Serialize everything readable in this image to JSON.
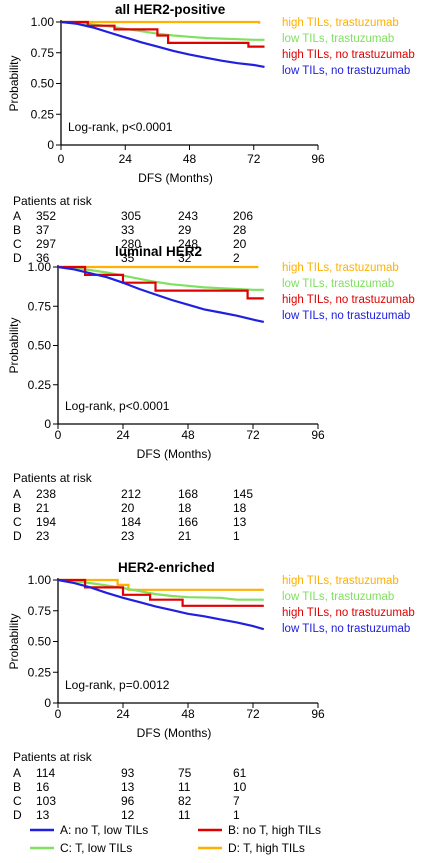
{
  "chart_data": [
    {
      "type": "line",
      "title": "all HER2-positive",
      "xlabel": "DFS (Months)",
      "ylabel": "Probability",
      "xlim": [
        0,
        96
      ],
      "ylim": [
        0,
        1
      ],
      "x_ticks": [
        "0",
        "24",
        "48",
        "72",
        "96"
      ],
      "y_ticks": [
        "0",
        "0.25",
        "0.50",
        "0.75",
        "1.00"
      ],
      "annotation": "Log-rank, p<0.0001",
      "series": [
        {
          "name": "high TILs, trastuzumab",
          "color": "#FFB000",
          "points": [
            [
              0,
              1.0
            ],
            [
              74,
              1.0
            ],
            [
              74,
              0.985
            ]
          ]
        },
        {
          "name": "low TILs, trastuzumab",
          "color": "#80E060",
          "points": [
            [
              0,
              1.0
            ],
            [
              6,
              0.995
            ],
            [
              12,
              0.98
            ],
            [
              18,
              0.965
            ],
            [
              24,
              0.945
            ],
            [
              30,
              0.925
            ],
            [
              36,
              0.905
            ],
            [
              42,
              0.89
            ],
            [
              48,
              0.88
            ],
            [
              54,
              0.87
            ],
            [
              60,
              0.865
            ],
            [
              66,
              0.86
            ],
            [
              72,
              0.855
            ],
            [
              76,
              0.855
            ]
          ]
        },
        {
          "name": "high TILs, no trastuzumab",
          "color": "#E00000",
          "points": [
            [
              0,
              1.0
            ],
            [
              10,
              1.0
            ],
            [
              10,
              0.97
            ],
            [
              20,
              0.97
            ],
            [
              20,
              0.94
            ],
            [
              36,
              0.94
            ],
            [
              36,
              0.89
            ],
            [
              40,
              0.89
            ],
            [
              40,
              0.83
            ],
            [
              70,
              0.83
            ],
            [
              70,
              0.8
            ],
            [
              76,
              0.8
            ]
          ]
        },
        {
          "name": "low TILs, no trastuzumab",
          "color": "#2020E0",
          "points": [
            [
              0,
              1.0
            ],
            [
              6,
              0.985
            ],
            [
              12,
              0.955
            ],
            [
              18,
              0.915
            ],
            [
              24,
              0.875
            ],
            [
              30,
              0.835
            ],
            [
              36,
              0.8
            ],
            [
              42,
              0.765
            ],
            [
              48,
              0.735
            ],
            [
              54,
              0.71
            ],
            [
              60,
              0.685
            ],
            [
              66,
              0.665
            ],
            [
              72,
              0.65
            ],
            [
              76,
              0.635
            ]
          ]
        }
      ],
      "risk_table": {
        "header": "Patients at risk",
        "rows": [
          {
            "label": "A",
            "values": [
              "352",
              "305",
              "243",
              "206"
            ]
          },
          {
            "label": "B",
            "values": [
              "37",
              "33",
              "29",
              "28"
            ]
          },
          {
            "label": "C",
            "values": [
              "297",
              "280",
              "248",
              "20"
            ]
          },
          {
            "label": "D",
            "values": [
              "36",
              "35",
              "32",
              "2"
            ]
          }
        ]
      }
    },
    {
      "type": "line",
      "title": "luminal HER2",
      "xlabel": "DFS (Months)",
      "ylabel": "Probability",
      "xlim": [
        0,
        96
      ],
      "ylim": [
        0,
        1
      ],
      "x_ticks": [
        "0",
        "24",
        "48",
        "72",
        "96"
      ],
      "y_ticks": [
        "0",
        "0.25",
        "0.50",
        "0.75",
        "1.00"
      ],
      "annotation": "Log-rank, p<0.0001",
      "series": [
        {
          "name": "high TILs, trastuzumab",
          "color": "#FFB000",
          "points": [
            [
              0,
              1.0
            ],
            [
              74,
              1.0
            ]
          ]
        },
        {
          "name": "low TILs, trastuzumab",
          "color": "#80E060",
          "points": [
            [
              0,
              1.0
            ],
            [
              6,
              0.995
            ],
            [
              12,
              0.98
            ],
            [
              18,
              0.965
            ],
            [
              24,
              0.945
            ],
            [
              30,
              0.925
            ],
            [
              36,
              0.905
            ],
            [
              42,
              0.89
            ],
            [
              48,
              0.88
            ],
            [
              54,
              0.87
            ],
            [
              60,
              0.865
            ],
            [
              66,
              0.86
            ],
            [
              72,
              0.855
            ],
            [
              76,
              0.855
            ]
          ]
        },
        {
          "name": "high TILs, no trastuzumab",
          "color": "#E00000",
          "points": [
            [
              0,
              1.0
            ],
            [
              10,
              1.0
            ],
            [
              10,
              0.95
            ],
            [
              24,
              0.95
            ],
            [
              24,
              0.9
            ],
            [
              36,
              0.9
            ],
            [
              36,
              0.85
            ],
            [
              70,
              0.85
            ],
            [
              70,
              0.8
            ],
            [
              76,
              0.8
            ]
          ]
        },
        {
          "name": "low TILs, no trastuzumab",
          "color": "#2020E0",
          "points": [
            [
              0,
              1.0
            ],
            [
              6,
              0.985
            ],
            [
              12,
              0.96
            ],
            [
              18,
              0.935
            ],
            [
              24,
              0.9
            ],
            [
              30,
              0.86
            ],
            [
              36,
              0.825
            ],
            [
              42,
              0.79
            ],
            [
              48,
              0.76
            ],
            [
              54,
              0.73
            ],
            [
              60,
              0.71
            ],
            [
              66,
              0.69
            ],
            [
              72,
              0.665
            ],
            [
              76,
              0.65
            ]
          ]
        }
      ],
      "risk_table": {
        "header": "Patients at risk",
        "rows": [
          {
            "label": "A",
            "values": [
              "238",
              "212",
              "168",
              "145"
            ]
          },
          {
            "label": "B",
            "values": [
              "21",
              "20",
              "18",
              "18"
            ]
          },
          {
            "label": "C",
            "values": [
              "194",
              "184",
              "166",
              "13"
            ]
          },
          {
            "label": "D",
            "values": [
              "23",
              "23",
              "21",
              "1"
            ]
          }
        ]
      }
    },
    {
      "type": "line",
      "title": "HER2-enriched",
      "xlabel": "DFS (Months)",
      "ylabel": "Probability",
      "xlim": [
        0,
        96
      ],
      "ylim": [
        0,
        1
      ],
      "x_ticks": [
        "0",
        "24",
        "48",
        "72",
        "96"
      ],
      "y_ticks": [
        "0",
        "0.25",
        "0.50",
        "0.75",
        "1.00"
      ],
      "annotation": "Log-rank, p=0.0012",
      "series": [
        {
          "name": "high TILs, trastuzumab",
          "color": "#FFB000",
          "points": [
            [
              0,
              1.0
            ],
            [
              22,
              1.0
            ],
            [
              22,
              0.96
            ],
            [
              26,
              0.96
            ],
            [
              26,
              0.92
            ],
            [
              76,
              0.92
            ]
          ]
        },
        {
          "name": "low TILs, trastuzumab",
          "color": "#80E060",
          "points": [
            [
              0,
              1.0
            ],
            [
              6,
              0.99
            ],
            [
              12,
              0.975
            ],
            [
              18,
              0.955
            ],
            [
              24,
              0.935
            ],
            [
              30,
              0.91
            ],
            [
              36,
              0.885
            ],
            [
              42,
              0.87
            ],
            [
              48,
              0.86
            ],
            [
              60,
              0.855
            ],
            [
              66,
              0.84
            ],
            [
              72,
              0.84
            ],
            [
              76,
              0.84
            ]
          ]
        },
        {
          "name": "high TILs, no trastuzumab",
          "color": "#E00000",
          "points": [
            [
              0,
              1.0
            ],
            [
              10,
              1.0
            ],
            [
              10,
              0.94
            ],
            [
              24,
              0.94
            ],
            [
              24,
              0.88
            ],
            [
              34,
              0.88
            ],
            [
              34,
              0.84
            ],
            [
              46,
              0.84
            ],
            [
              46,
              0.79
            ],
            [
              76,
              0.79
            ]
          ]
        },
        {
          "name": "low TILs, no trastuzumab",
          "color": "#2020E0",
          "points": [
            [
              0,
              1.0
            ],
            [
              6,
              0.975
            ],
            [
              12,
              0.94
            ],
            [
              18,
              0.895
            ],
            [
              24,
              0.855
            ],
            [
              30,
              0.82
            ],
            [
              36,
              0.785
            ],
            [
              42,
              0.755
            ],
            [
              48,
              0.725
            ],
            [
              54,
              0.705
            ],
            [
              60,
              0.68
            ],
            [
              66,
              0.655
            ],
            [
              72,
              0.625
            ],
            [
              76,
              0.6
            ]
          ]
        }
      ],
      "risk_table": {
        "header": "Patients at risk",
        "rows": [
          {
            "label": "A",
            "values": [
              "114",
              "93",
              "75",
              "61"
            ]
          },
          {
            "label": "B",
            "values": [
              "16",
              "13",
              "11",
              "10"
            ]
          },
          {
            "label": "C",
            "values": [
              "103",
              "96",
              "82",
              "7"
            ]
          },
          {
            "label": "D",
            "values": [
              "13",
              "12",
              "11",
              "1"
            ]
          }
        ]
      }
    }
  ],
  "bottom_legend": [
    {
      "label": "A: no T, low TILs",
      "color": "#2020E0"
    },
    {
      "label": "B: no T, high TILs",
      "color": "#E00000"
    },
    {
      "label": "C: T, low TILs",
      "color": "#80E060"
    },
    {
      "label": "D: T, high TILs",
      "color": "#FFB000"
    }
  ]
}
